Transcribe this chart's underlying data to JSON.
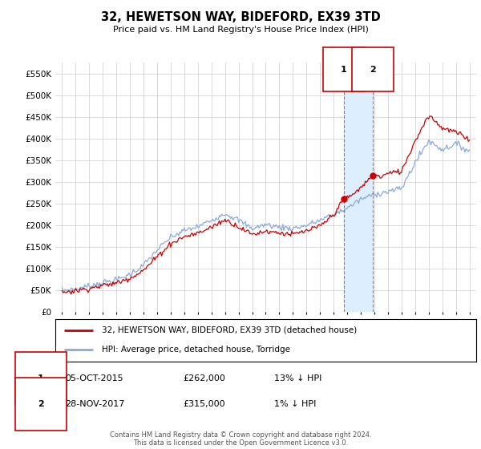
{
  "title": "32, HEWETSON WAY, BIDEFORD, EX39 3TD",
  "subtitle": "Price paid vs. HM Land Registry's House Price Index (HPI)",
  "legend_label_red": "32, HEWETSON WAY, BIDEFORD, EX39 3TD (detached house)",
  "legend_label_blue": "HPI: Average price, detached house, Torridge",
  "annotation1_label": "1",
  "annotation1_date": "05-OCT-2015",
  "annotation1_price": "£262,000",
  "annotation1_hpi": "13% ↓ HPI",
  "annotation1_year": 2015.75,
  "annotation1_value": 262000,
  "annotation2_label": "2",
  "annotation2_date": "28-NOV-2017",
  "annotation2_price": "£315,000",
  "annotation2_hpi": "1% ↓ HPI",
  "annotation2_year": 2017.9,
  "annotation2_value": 315000,
  "footer": "Contains HM Land Registry data © Crown copyright and database right 2024.\nThis data is licensed under the Open Government Licence v3.0.",
  "ylim": [
    0,
    575000
  ],
  "yticks": [
    0,
    50000,
    100000,
    150000,
    200000,
    250000,
    300000,
    350000,
    400000,
    450000,
    500000,
    550000
  ],
  "ytick_labels": [
    "£0",
    "£50K",
    "£100K",
    "£150K",
    "£200K",
    "£250K",
    "£300K",
    "£350K",
    "£400K",
    "£450K",
    "£500K",
    "£550K"
  ],
  "background_color": "#ffffff",
  "grid_color": "#cccccc",
  "line_color_red": "#cc0000",
  "line_color_blue": "#88aadd",
  "shade_color": "#ddeeff",
  "vline_color": "#cc0000",
  "box_color": "#cc0000",
  "xlim_left": 1994.5,
  "xlim_right": 2025.5
}
